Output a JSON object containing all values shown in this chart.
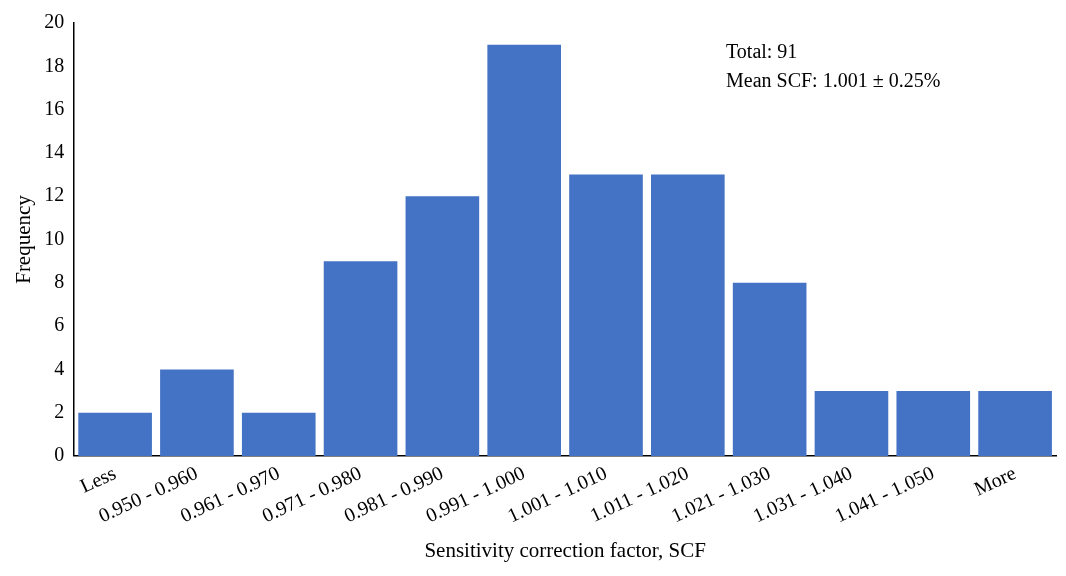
{
  "chart_data": {
    "type": "bar",
    "xlabel": "Sensitivity correction factor, SCF",
    "ylabel": "Frequency",
    "categories": [
      "Less",
      "0.950 - 0.960",
      "0.961 - 0.970",
      "0.971 - 0.980",
      "0.981 - 0.990",
      "0.991 - 1.000",
      "1.001 - 1.010",
      "1.011 - 1.020",
      "1.021 - 1.030",
      "1.031 - 1.040",
      "1.041 - 1.050",
      "More"
    ],
    "values": [
      2,
      4,
      2,
      9,
      12,
      19,
      13,
      13,
      8,
      3,
      3,
      3
    ],
    "color": "#4472c4",
    "ylim": [
      0,
      20
    ],
    "yticks": [
      0,
      2,
      4,
      6,
      8,
      10,
      12,
      14,
      16,
      18,
      20
    ],
    "grid": false,
    "legend": false,
    "annotations": [
      "Total: 91",
      "Mean SCF: 1.001 ± 0.25%"
    ]
  }
}
